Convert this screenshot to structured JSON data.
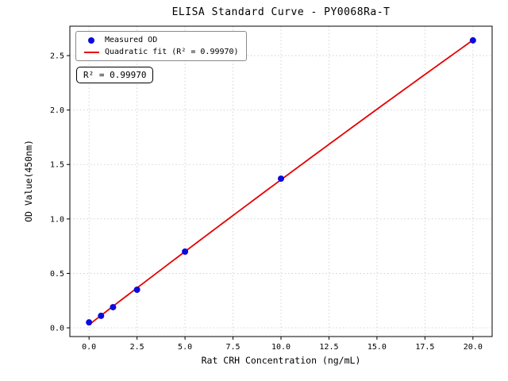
{
  "chart_data": {
    "type": "scatter",
    "title": "ELISA Standard Curve - PY0068Ra-T",
    "xlabel": "Rat CRH Concentration (ng/mL)",
    "ylabel": "OD Value(450nm)",
    "xlim": [
      -1,
      21
    ],
    "ylim": [
      -0.08,
      2.77
    ],
    "xticks": [
      0,
      2.5,
      5,
      7.5,
      10,
      12.5,
      15,
      17.5,
      20
    ],
    "xtick_labels": [
      "0.0",
      "2.5",
      "5.0",
      "7.5",
      "10.0",
      "12.5",
      "15.0",
      "17.5",
      "20.0"
    ],
    "yticks": [
      0,
      0.5,
      1,
      1.5,
      2,
      2.5
    ],
    "ytick_labels": [
      "0.0",
      "0.5",
      "1.0",
      "1.5",
      "2.0",
      "2.5"
    ],
    "grid": true,
    "legend_position": "upper left",
    "series": [
      {
        "name": "Measured OD",
        "kind": "scatter",
        "color": "#0b0bdf",
        "x": [
          0,
          0.625,
          1.25,
          2.5,
          5,
          10,
          20
        ],
        "y": [
          0.05,
          0.11,
          0.19,
          0.35,
          0.7,
          1.37,
          2.64
        ]
      },
      {
        "name": "Quadratic fit (R² = 0.99970)",
        "kind": "line",
        "fit": "quadratic",
        "color": "#e60000",
        "x_range": [
          0,
          20
        ]
      }
    ],
    "annotation": "R² = 0.99970",
    "r_squared": "0.99970",
    "grid_color": "#c9c9c9",
    "axis_color": "#000000"
  }
}
